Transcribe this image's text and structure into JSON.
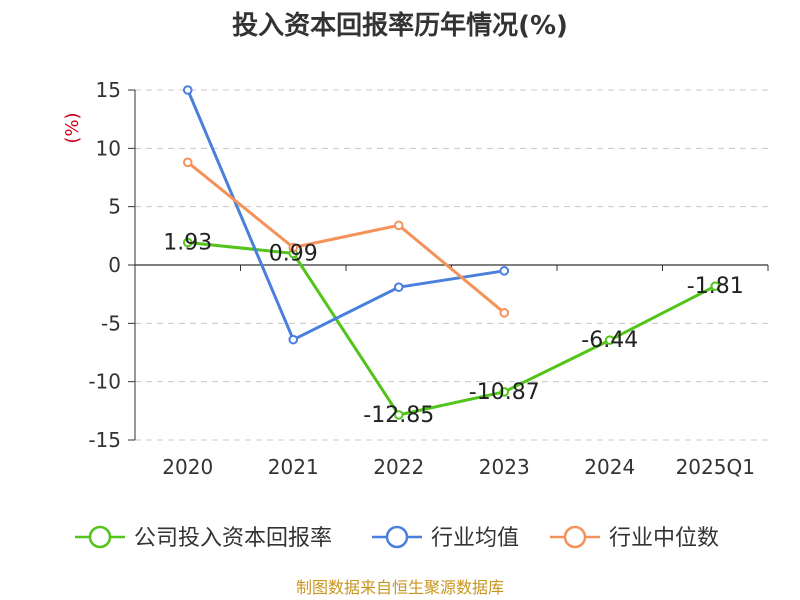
{
  "chart_data": {
    "type": "line",
    "title": "投入资本回报率历年情况(%)",
    "ylabel": "(%)",
    "categories": [
      "2020",
      "2021",
      "2022",
      "2023",
      "2024",
      "2025Q1"
    ],
    "ylim": [
      -15,
      15
    ],
    "yticks": [
      15,
      10,
      5,
      0,
      -5,
      -10,
      -15
    ],
    "grid": true,
    "legend_position": "bottom",
    "series": [
      {
        "name": "公司投入资本回报率",
        "color": "#52c41a",
        "values": [
          1.93,
          0.99,
          -12.85,
          -10.87,
          -6.44,
          -1.81
        ],
        "labels": [
          "1.93",
          "0.99",
          "-12.85",
          "-10.87",
          "-6.44",
          "-1.81"
        ]
      },
      {
        "name": "行业均值",
        "color": "#4a7fdc",
        "values": [
          15.0,
          -6.4,
          -1.9,
          -0.5,
          null,
          null
        ]
      },
      {
        "name": "行业中位数",
        "color": "#f5925a",
        "values": [
          8.8,
          1.5,
          3.4,
          -4.1,
          null,
          null
        ]
      }
    ]
  },
  "source_note": "制图数据来自恒生聚源数据库"
}
